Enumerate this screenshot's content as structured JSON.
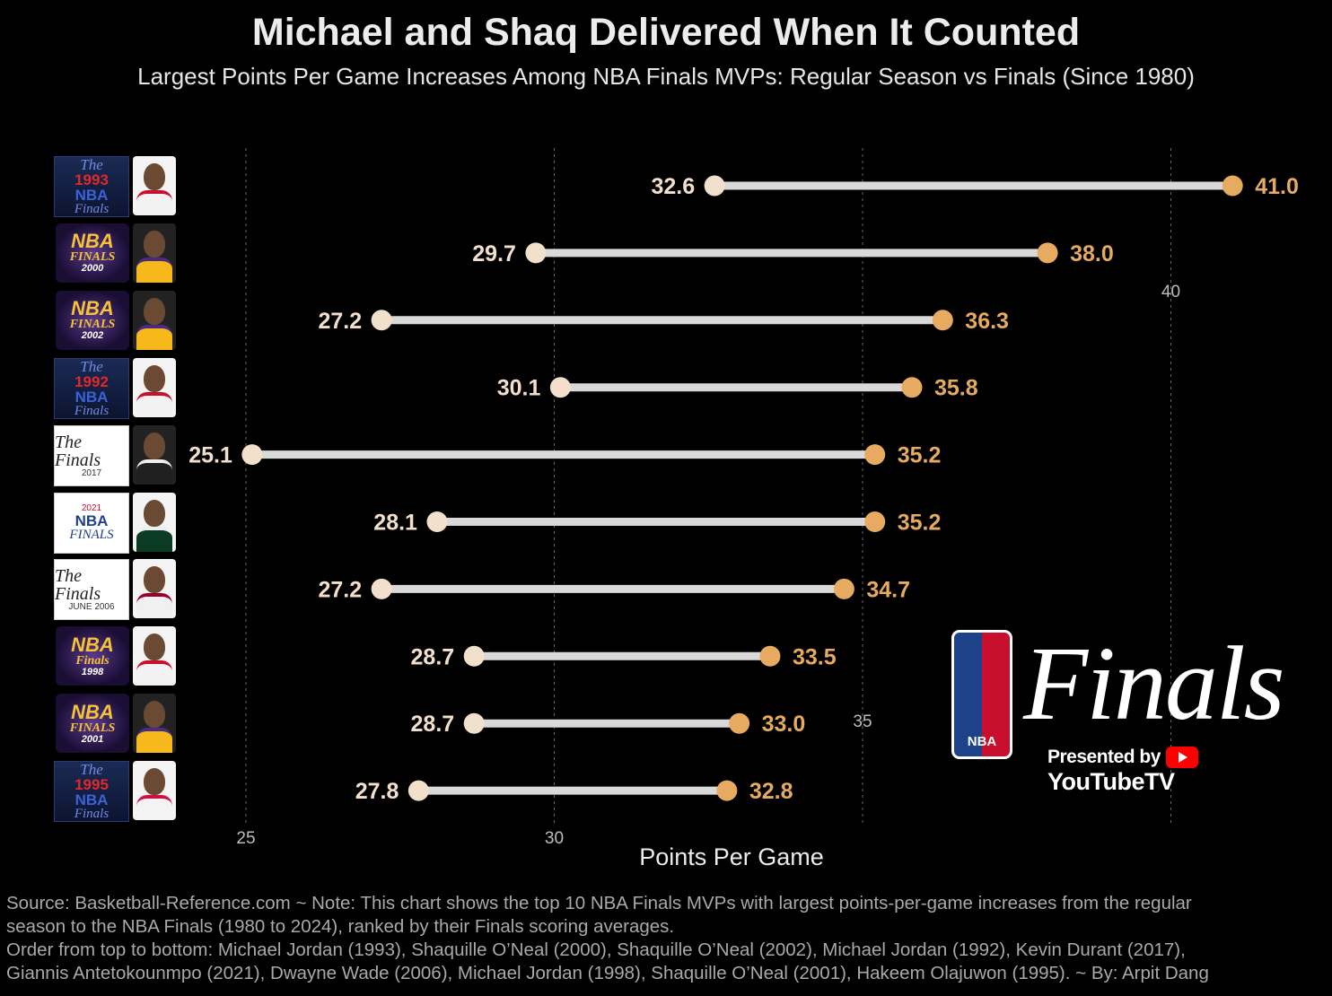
{
  "header": {
    "title": "Michael and Shaq Delivered When It Counted",
    "subtitle": "Largest Points Per Game Increases Among NBA Finals MVPs: Regular Season vs Finals (Since 1980)"
  },
  "chart_data": {
    "type": "dumbbell",
    "xlabel": "Points Per Game",
    "xlim": [
      23.0,
      44.0
    ],
    "x_ticks": [
      25,
      30,
      35,
      40
    ],
    "grid": true,
    "colors": {
      "regular_season": "#f2e0cc",
      "finals": "#e6aa61",
      "bar": "#d9d9d9",
      "grid": "#666666"
    },
    "rows": [
      {
        "event_logo": {
          "top": "The",
          "year": "1993",
          "mid": "NBA",
          "bottom": "Finals",
          "style": "dark"
        },
        "team_style": "bulls",
        "regular_season": 32.6,
        "finals": 41.0,
        "regular_label": "32.6",
        "finals_label": "41.0"
      },
      {
        "event_logo": {
          "top": "",
          "year": "2000",
          "mid": "NBA",
          "bottom": "FINALS",
          "style": "gold"
        },
        "team_style": "lakers",
        "regular_season": 29.7,
        "finals": 38.0,
        "regular_label": "29.7",
        "finals_label": "38.0"
      },
      {
        "event_logo": {
          "top": "",
          "year": "2002",
          "mid": "NBA",
          "bottom": "FINALS",
          "style": "gold"
        },
        "team_style": "lakers",
        "regular_season": 27.2,
        "finals": 36.3,
        "regular_label": "27.2",
        "finals_label": "36.3"
      },
      {
        "event_logo": {
          "top": "The",
          "year": "1992",
          "mid": "NBA",
          "bottom": "Finals",
          "style": "dark"
        },
        "team_style": "bulls",
        "regular_season": 30.1,
        "finals": 35.8,
        "regular_label": "30.1",
        "finals_label": "35.8"
      },
      {
        "event_logo": {
          "top": "The Finals",
          "year": "2017",
          "mid": "",
          "bottom": "",
          "style": "white"
        },
        "team_style": "nets",
        "regular_season": 25.1,
        "finals": 35.2,
        "regular_label": "25.1",
        "finals_label": "35.2"
      },
      {
        "event_logo": {
          "top": "",
          "year": "2021",
          "mid": "NBA",
          "bottom": "FINALS",
          "style": "nba21"
        },
        "team_style": "bucks",
        "regular_season": 28.1,
        "finals": 35.2,
        "regular_label": "28.1",
        "finals_label": "35.2"
      },
      {
        "event_logo": {
          "top": "The Finals",
          "year": "JUNE 2006",
          "mid": "",
          "bottom": "",
          "style": "white"
        },
        "team_style": "heat",
        "regular_season": 27.2,
        "finals": 34.7,
        "regular_label": "27.2",
        "finals_label": "34.7"
      },
      {
        "event_logo": {
          "top": "",
          "year": "1998",
          "mid": "NBA",
          "bottom": "Finals",
          "style": "gold"
        },
        "team_style": "bulls",
        "regular_season": 28.7,
        "finals": 33.5,
        "regular_label": "28.7",
        "finals_label": "33.5"
      },
      {
        "event_logo": {
          "top": "",
          "year": "2001",
          "mid": "NBA",
          "bottom": "FINALS",
          "style": "gold"
        },
        "team_style": "lakers",
        "regular_season": 28.7,
        "finals": 33.0,
        "regular_label": "28.7",
        "finals_label": "33.0"
      },
      {
        "event_logo": {
          "top": "The",
          "year": "1995",
          "mid": "NBA",
          "bottom": "Finals",
          "style": "dark"
        },
        "team_style": "rockets",
        "regular_season": 27.8,
        "finals": 32.8,
        "regular_label": "27.8",
        "finals_label": "32.8"
      }
    ]
  },
  "brand_logo": {
    "shield_text": "NBA",
    "wordmark": "Finals",
    "presented_by": "Presented by",
    "sponsor": "YouTubeTV"
  },
  "footer": {
    "line1": "Source: Basketball-Reference.com   ~   Note: This chart shows the top 10 NBA Finals MVPs with largest points-per-game increases from the regular",
    "line2": "season to the NBA Finals (1980 to 2024), ranked by their Finals scoring averages.",
    "line3": "Order from top to bottom: Michael Jordan (1993), Shaquille O’Neal (2000), Shaquille O’Neal (2002), Michael Jordan (1992), Kevin Durant (2017),",
    "line4": "Giannis Antetokounmpo (2021), Dwayne Wade (2006), Michael Jordan (1998), Shaquille O’Neal (2001), Hakeem Olajuwon (1995).   ~   By: Arpit Dang"
  }
}
